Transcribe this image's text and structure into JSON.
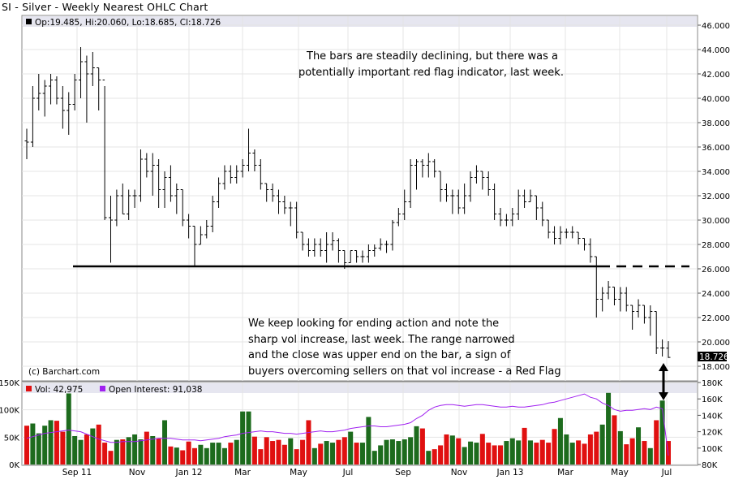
{
  "title": "SI - Silver - Weekly Nearest OHLC Chart",
  "legend": {
    "ohlc": "Op:19.485, Hi:20.060, Lo:18.685, Cl:18.726",
    "volume": "Vol: 42,975",
    "open_interest": "Open Interest: 91,038"
  },
  "credit": "(c) Barchart.com",
  "last_price_label": "18.726",
  "annotations": {
    "top": [
      "The bars are steadily declining, but there was a",
      "potentially important red flag indicator, last week."
    ],
    "bottom": [
      "We keep looking for ending action and note the",
      "sharp vol increase, last week.  The range narrowed",
      "and the close was upper end on the bar, a sign of",
      "buyers overcoming sellers on that vol increase - a Red Flag"
    ]
  },
  "colors": {
    "up_volume": "#1d6b1d",
    "down_volume": "#e01010",
    "open_interest": "#a020f0",
    "header_band": "#e6e6f0"
  },
  "chart_data": [
    {
      "type": "ohlc",
      "title": "SI - Silver - Weekly Nearest OHLC Chart",
      "ylim": [
        16,
        46
      ],
      "yticks": [
        "46.000",
        "44.000",
        "42.000",
        "40.000",
        "38.000",
        "36.000",
        "34.000",
        "32.000",
        "30.000",
        "28.000",
        "26.000",
        "24.000",
        "22.000",
        "20.000",
        "18.000"
      ],
      "xticks": [
        "Sep 11",
        "Nov",
        "Jan 12",
        "Mar",
        "May",
        "Jul",
        "Sep",
        "Nov",
        "Jan 13",
        "Mar",
        "May",
        "Jul"
      ],
      "grid": true,
      "support_line": 26.2,
      "bars": [
        [
          36.5,
          37.5,
          35.0,
          36.4
        ],
        [
          36.4,
          41.0,
          36.0,
          40.0
        ],
        [
          40.0,
          42.0,
          39.0,
          40.4
        ],
        [
          40.4,
          41.5,
          38.5,
          41.0
        ],
        [
          41.0,
          42.0,
          39.5,
          41.5
        ],
        [
          41.5,
          41.8,
          39.5,
          40.0
        ],
        [
          40.0,
          41.0,
          37.5,
          39.0
        ],
        [
          39.0,
          40.5,
          37.0,
          39.5
        ],
        [
          39.5,
          42.0,
          39.0,
          41.5
        ],
        [
          41.5,
          44.2,
          40.0,
          43.0
        ],
        [
          43.0,
          43.5,
          38.0,
          42.0
        ],
        [
          42.0,
          43.8,
          41.0,
          42.5
        ],
        [
          42.5,
          42.5,
          39.0,
          41.5
        ],
        [
          41.5,
          41.0,
          30.0,
          30.2
        ],
        [
          30.2,
          32.0,
          26.5,
          30.0
        ],
        [
          30.0,
          32.5,
          29.5,
          32.0
        ],
        [
          32.0,
          33.0,
          30.5,
          30.5
        ],
        [
          30.5,
          32.5,
          30.0,
          32.0
        ],
        [
          32.0,
          32.5,
          31.0,
          32.0
        ],
        [
          32.0,
          35.8,
          31.5,
          35.0
        ],
        [
          35.0,
          35.5,
          33.5,
          34.0
        ],
        [
          34.0,
          35.5,
          32.0,
          34.5
        ],
        [
          34.5,
          35.0,
          31.0,
          32.5
        ],
        [
          32.5,
          34.0,
          31.0,
          33.5
        ],
        [
          33.5,
          34.5,
          31.5,
          32.0
        ],
        [
          32.0,
          33.0,
          30.5,
          32.5
        ],
        [
          32.5,
          32.5,
          29.5,
          30.0
        ],
        [
          30.0,
          30.5,
          28.5,
          29.5
        ],
        [
          29.5,
          29.5,
          26.2,
          28.0
        ],
        [
          28.0,
          29.5,
          28.0,
          28.8
        ],
        [
          28.8,
          30.0,
          28.5,
          29.5
        ],
        [
          29.5,
          32.0,
          29.0,
          31.5
        ],
        [
          31.5,
          33.5,
          31.0,
          33.0
        ],
        [
          33.0,
          34.5,
          32.5,
          34.0
        ],
        [
          34.0,
          34.5,
          33.0,
          33.5
        ],
        [
          33.5,
          34.5,
          33.0,
          34.0
        ],
        [
          34.0,
          35.0,
          33.5,
          34.5
        ],
        [
          34.5,
          37.5,
          34.0,
          35.5
        ],
        [
          35.5,
          35.8,
          34.0,
          34.5
        ],
        [
          34.5,
          35.0,
          32.5,
          33.0
        ],
        [
          33.0,
          33.0,
          31.5,
          32.5
        ],
        [
          32.5,
          33.0,
          31.5,
          32.0
        ],
        [
          32.0,
          32.5,
          30.5,
          31.5
        ],
        [
          31.5,
          32.0,
          30.5,
          31.0
        ],
        [
          31.0,
          31.5,
          29.5,
          31.0
        ],
        [
          31.0,
          31.5,
          28.5,
          29.0
        ],
        [
          29.0,
          29.0,
          27.5,
          28.0
        ],
        [
          28.0,
          28.5,
          27.0,
          27.5
        ],
        [
          27.5,
          28.5,
          27.0,
          28.0
        ],
        [
          28.0,
          28.5,
          27.0,
          27.5
        ],
        [
          27.5,
          29.0,
          26.5,
          28.0
        ],
        [
          28.0,
          29.0,
          27.5,
          28.3
        ],
        [
          28.3,
          28.5,
          26.5,
          27.5
        ],
        [
          27.5,
          27.5,
          26.0,
          26.5
        ],
        [
          26.5,
          27.5,
          26.5,
          27.5
        ],
        [
          27.5,
          27.5,
          26.5,
          27.0
        ],
        [
          27.0,
          27.5,
          26.5,
          27.0
        ],
        [
          27.0,
          28.0,
          26.5,
          27.5
        ],
        [
          27.5,
          28.0,
          27.0,
          27.7
        ],
        [
          27.7,
          28.5,
          27.5,
          28.0
        ],
        [
          28.0,
          28.3,
          27.3,
          28.0
        ],
        [
          28.0,
          30.0,
          27.5,
          29.8
        ],
        [
          29.8,
          31.0,
          29.5,
          30.5
        ],
        [
          30.5,
          32.5,
          30.0,
          31.5
        ],
        [
          31.5,
          35.0,
          31.0,
          34.5
        ],
        [
          34.5,
          35.0,
          32.5,
          34.8
        ],
        [
          34.8,
          35.0,
          33.5,
          34.5
        ],
        [
          34.5,
          35.5,
          33.5,
          34.8
        ],
        [
          34.8,
          35.0,
          33.5,
          34.0
        ],
        [
          34.0,
          34.0,
          31.5,
          32.5
        ],
        [
          32.5,
          33.0,
          31.5,
          32.0
        ],
        [
          32.0,
          32.5,
          30.5,
          32.0
        ],
        [
          32.0,
          32.5,
          30.5,
          31.0
        ],
        [
          31.0,
          33.0,
          30.5,
          32.0
        ],
        [
          32.0,
          34.0,
          31.5,
          33.5
        ],
        [
          33.5,
          34.5,
          33.0,
          34.0
        ],
        [
          34.0,
          34.0,
          32.5,
          33.5
        ],
        [
          33.5,
          34.0,
          32.0,
          32.5
        ],
        [
          32.5,
          33.0,
          30.0,
          30.5
        ],
        [
          30.5,
          31.0,
          29.5,
          30.0
        ],
        [
          30.0,
          30.5,
          29.5,
          30.0
        ],
        [
          30.0,
          31.0,
          29.5,
          30.5
        ],
        [
          30.5,
          32.5,
          30.0,
          32.0
        ],
        [
          32.0,
          32.5,
          31.0,
          31.5
        ],
        [
          31.5,
          32.5,
          31.5,
          32.0
        ],
        [
          32.0,
          32.0,
          30.0,
          31.0
        ],
        [
          31.0,
          31.5,
          29.5,
          30.0
        ],
        [
          30.0,
          30.0,
          28.5,
          29.0
        ],
        [
          29.0,
          29.5,
          28.0,
          28.5
        ],
        [
          28.5,
          29.5,
          28.0,
          29.0
        ],
        [
          29.0,
          29.3,
          28.5,
          29.0
        ],
        [
          29.0,
          29.5,
          28.5,
          29.0
        ],
        [
          29.0,
          29.0,
          28.0,
          28.5
        ],
        [
          28.5,
          28.5,
          27.5,
          28.0
        ],
        [
          28.0,
          28.5,
          26.5,
          27.0
        ],
        [
          27.0,
          27.0,
          22.0,
          23.5
        ],
        [
          23.5,
          24.5,
          22.5,
          24.0
        ],
        [
          24.0,
          25.0,
          23.5,
          24.5
        ],
        [
          24.5,
          24.5,
          23.0,
          23.5
        ],
        [
          23.5,
          24.5,
          22.5,
          24.0
        ],
        [
          24.0,
          24.5,
          22.5,
          23.0
        ],
        [
          23.0,
          23.0,
          21.0,
          22.5
        ],
        [
          22.5,
          23.5,
          22.0,
          23.0
        ],
        [
          23.0,
          23.0,
          21.5,
          22.0
        ],
        [
          22.0,
          23.0,
          20.5,
          22.5
        ],
        [
          22.5,
          22.5,
          19.0,
          19.5
        ],
        [
          19.5,
          20.2,
          18.8,
          19.5
        ],
        [
          19.485,
          20.06,
          18.685,
          18.726
        ]
      ]
    },
    {
      "type": "bar",
      "ylim": [
        0,
        150000
      ],
      "yticks": [
        "150K",
        "100K",
        "50K",
        "0K"
      ],
      "volume": [
        71000,
        75000,
        57000,
        71000,
        81000,
        80000,
        60000,
        130000,
        52000,
        45000,
        55000,
        66000,
        73000,
        40000,
        25000,
        45000,
        46000,
        50000,
        55000,
        46000,
        60000,
        52000,
        48000,
        81000,
        33000,
        31000,
        26000,
        42000,
        30000,
        36000,
        30000,
        40000,
        40000,
        30000,
        40000,
        45000,
        97000,
        97000,
        51000,
        28000,
        50000,
        43000,
        45000,
        36000,
        48000,
        28000,
        45000,
        81000,
        30000,
        38000,
        43000,
        40000,
        45000,
        50000,
        60000,
        40000,
        40000,
        87000,
        25000,
        35000,
        45000,
        46000,
        43000,
        46000,
        50000,
        70000,
        66000,
        25000,
        28000,
        35000,
        55000,
        53000,
        48000,
        32000,
        42000,
        40000,
        56000,
        40000,
        35000,
        35000,
        43000,
        48000,
        44000,
        67000,
        44000,
        40000,
        45000,
        40000,
        65000,
        85000,
        55000,
        40000,
        44000,
        38000,
        55000,
        60000,
        73000,
        131000,
        90000,
        61000,
        37000,
        48000,
        68000,
        43000,
        30000,
        81000,
        117000,
        43000
      ],
      "open_interest": [
        112000,
        114000,
        116000,
        118000,
        119000,
        120000,
        121000,
        122000,
        121000,
        120000,
        117000,
        114000,
        111000,
        109000,
        107000,
        107000,
        108000,
        108000,
        108000,
        109000,
        110000,
        111000,
        112000,
        112000,
        112000,
        111000,
        110000,
        110000,
        110000,
        109000,
        110000,
        111000,
        112000,
        114000,
        115000,
        116000,
        118000,
        119000,
        120000,
        121000,
        120000,
        120000,
        119000,
        118000,
        118000,
        117000,
        118000,
        119000,
        120000,
        121000,
        120000,
        120000,
        121000,
        122000,
        124000,
        125000,
        126000,
        127000,
        127000,
        126000,
        126000,
        127000,
        128000,
        129000,
        131000,
        136000,
        140000,
        146000,
        150000,
        152000,
        153000,
        153000,
        152000,
        151000,
        152000,
        153000,
        153000,
        152000,
        151000,
        150000,
        150000,
        151000,
        150000,
        150000,
        151000,
        152000,
        153000,
        155000,
        156000,
        158000,
        160000,
        162000,
        164000,
        166000,
        162000,
        160000,
        155000,
        152000,
        147000,
        145000,
        146000,
        146000,
        147000,
        148000,
        147000,
        150000,
        148000,
        91038
      ],
      "open_interest_yticks": [
        "180K",
        "160K",
        "140K",
        "120K",
        "100K",
        "80K"
      ],
      "open_interest_ylim": [
        80000,
        180000
      ]
    }
  ]
}
